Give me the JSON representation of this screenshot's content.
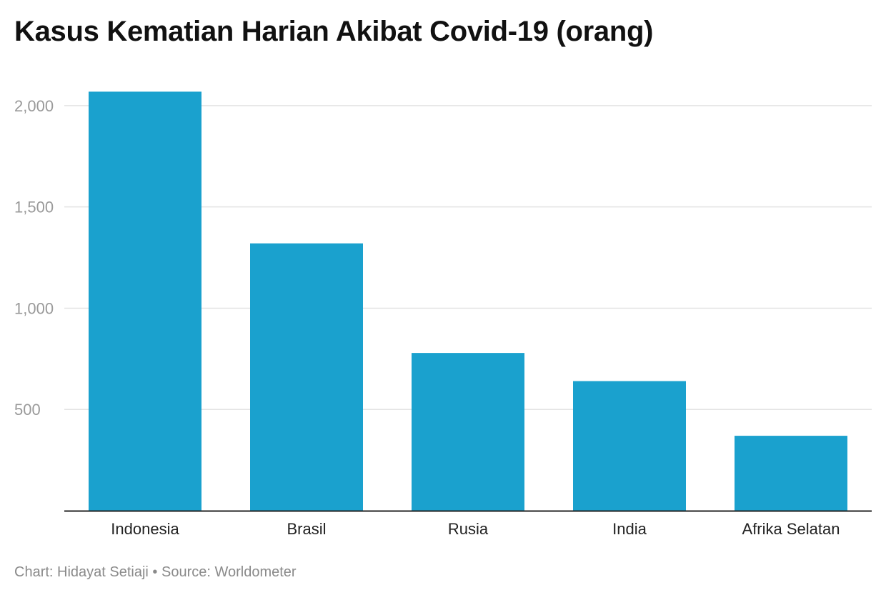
{
  "chart_data": {
    "type": "bar",
    "title": "Kasus Kematian Harian Akibat Covid-19 (orang)",
    "categories": [
      "Indonesia",
      "Brasil",
      "Rusia",
      "India",
      "Afrika Selatan"
    ],
    "values": [
      2069,
      1320,
      779,
      640,
      370
    ],
    "xlabel": "",
    "ylabel": "",
    "ylim": [
      0,
      2000
    ],
    "yticks": [
      500,
      1000,
      1500,
      2000
    ],
    "ytick_labels": [
      "500",
      "1,000",
      "1,500",
      "2,000"
    ],
    "grid": true,
    "bar_color": "#1aa1ce"
  },
  "footer": {
    "credit": "Chart: Hidayat Setiaji • Source: Worldometer"
  }
}
